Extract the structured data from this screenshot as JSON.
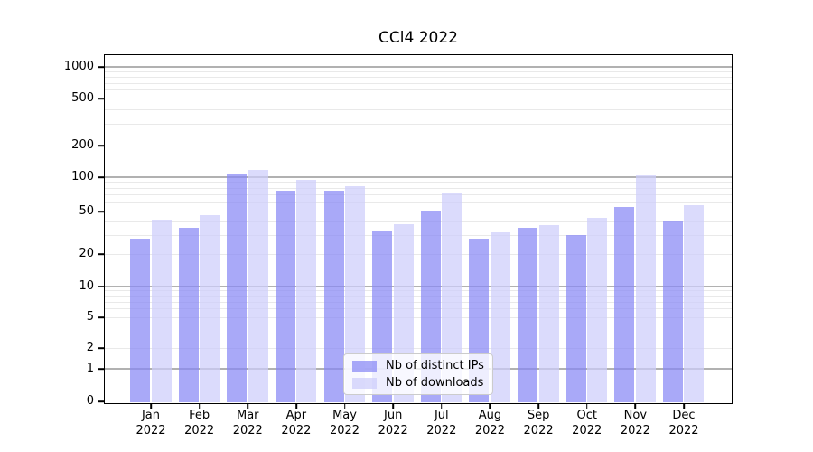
{
  "title": "CCl4 2022",
  "colors": {
    "ips_bar": "rgba(136,136,245,0.72)",
    "downloads_bar": "rgba(205,205,251,0.72)",
    "grid_major": "#b1b1b1",
    "grid_minor": "#e9e9e9",
    "spine": "#000000",
    "legend_border": "#cccccc"
  },
  "legend": {
    "items": [
      {
        "label": "Nb of distinct IPs",
        "series": "ips"
      },
      {
        "label": "Nb of downloads",
        "series": "downloads"
      }
    ]
  },
  "y_axis": {
    "tick_values": [
      0,
      1,
      2,
      5,
      10,
      20,
      50,
      100,
      200,
      500,
      1000
    ],
    "tick_labels": [
      "0",
      "1",
      "2",
      "5",
      "10",
      "20",
      "50",
      "100",
      "200",
      "500",
      "1000"
    ]
  },
  "x_axis": {
    "months": [
      "Jan",
      "Feb",
      "Mar",
      "Apr",
      "May",
      "Jun",
      "Jul",
      "Aug",
      "Sep",
      "Oct",
      "Nov",
      "Dec"
    ],
    "year": "2022"
  },
  "chart_data": {
    "type": "bar",
    "title": "CCl4 2022",
    "categories": [
      "Jan 2022",
      "Feb 2022",
      "Mar 2022",
      "Apr 2022",
      "May 2022",
      "Jun 2022",
      "Jul 2022",
      "Aug 2022",
      "Sep 2022",
      "Oct 2022",
      "Nov 2022",
      "Dec 2022"
    ],
    "series": [
      {
        "name": "Nb of distinct IPs",
        "values": [
          28,
          35,
          107,
          76,
          76,
          33,
          51,
          28,
          35,
          30,
          55,
          40
        ]
      },
      {
        "name": "Nb of downloads",
        "values": [
          42,
          46,
          118,
          95,
          84,
          38,
          73,
          32,
          37,
          44,
          104,
          57
        ]
      }
    ],
    "yscale": "symlog",
    "yticks": [
      0,
      1,
      2,
      5,
      10,
      20,
      50,
      100,
      200,
      500,
      1000
    ],
    "ylim": [
      0,
      1300
    ],
    "grid": true,
    "legend_position": "lower center"
  }
}
